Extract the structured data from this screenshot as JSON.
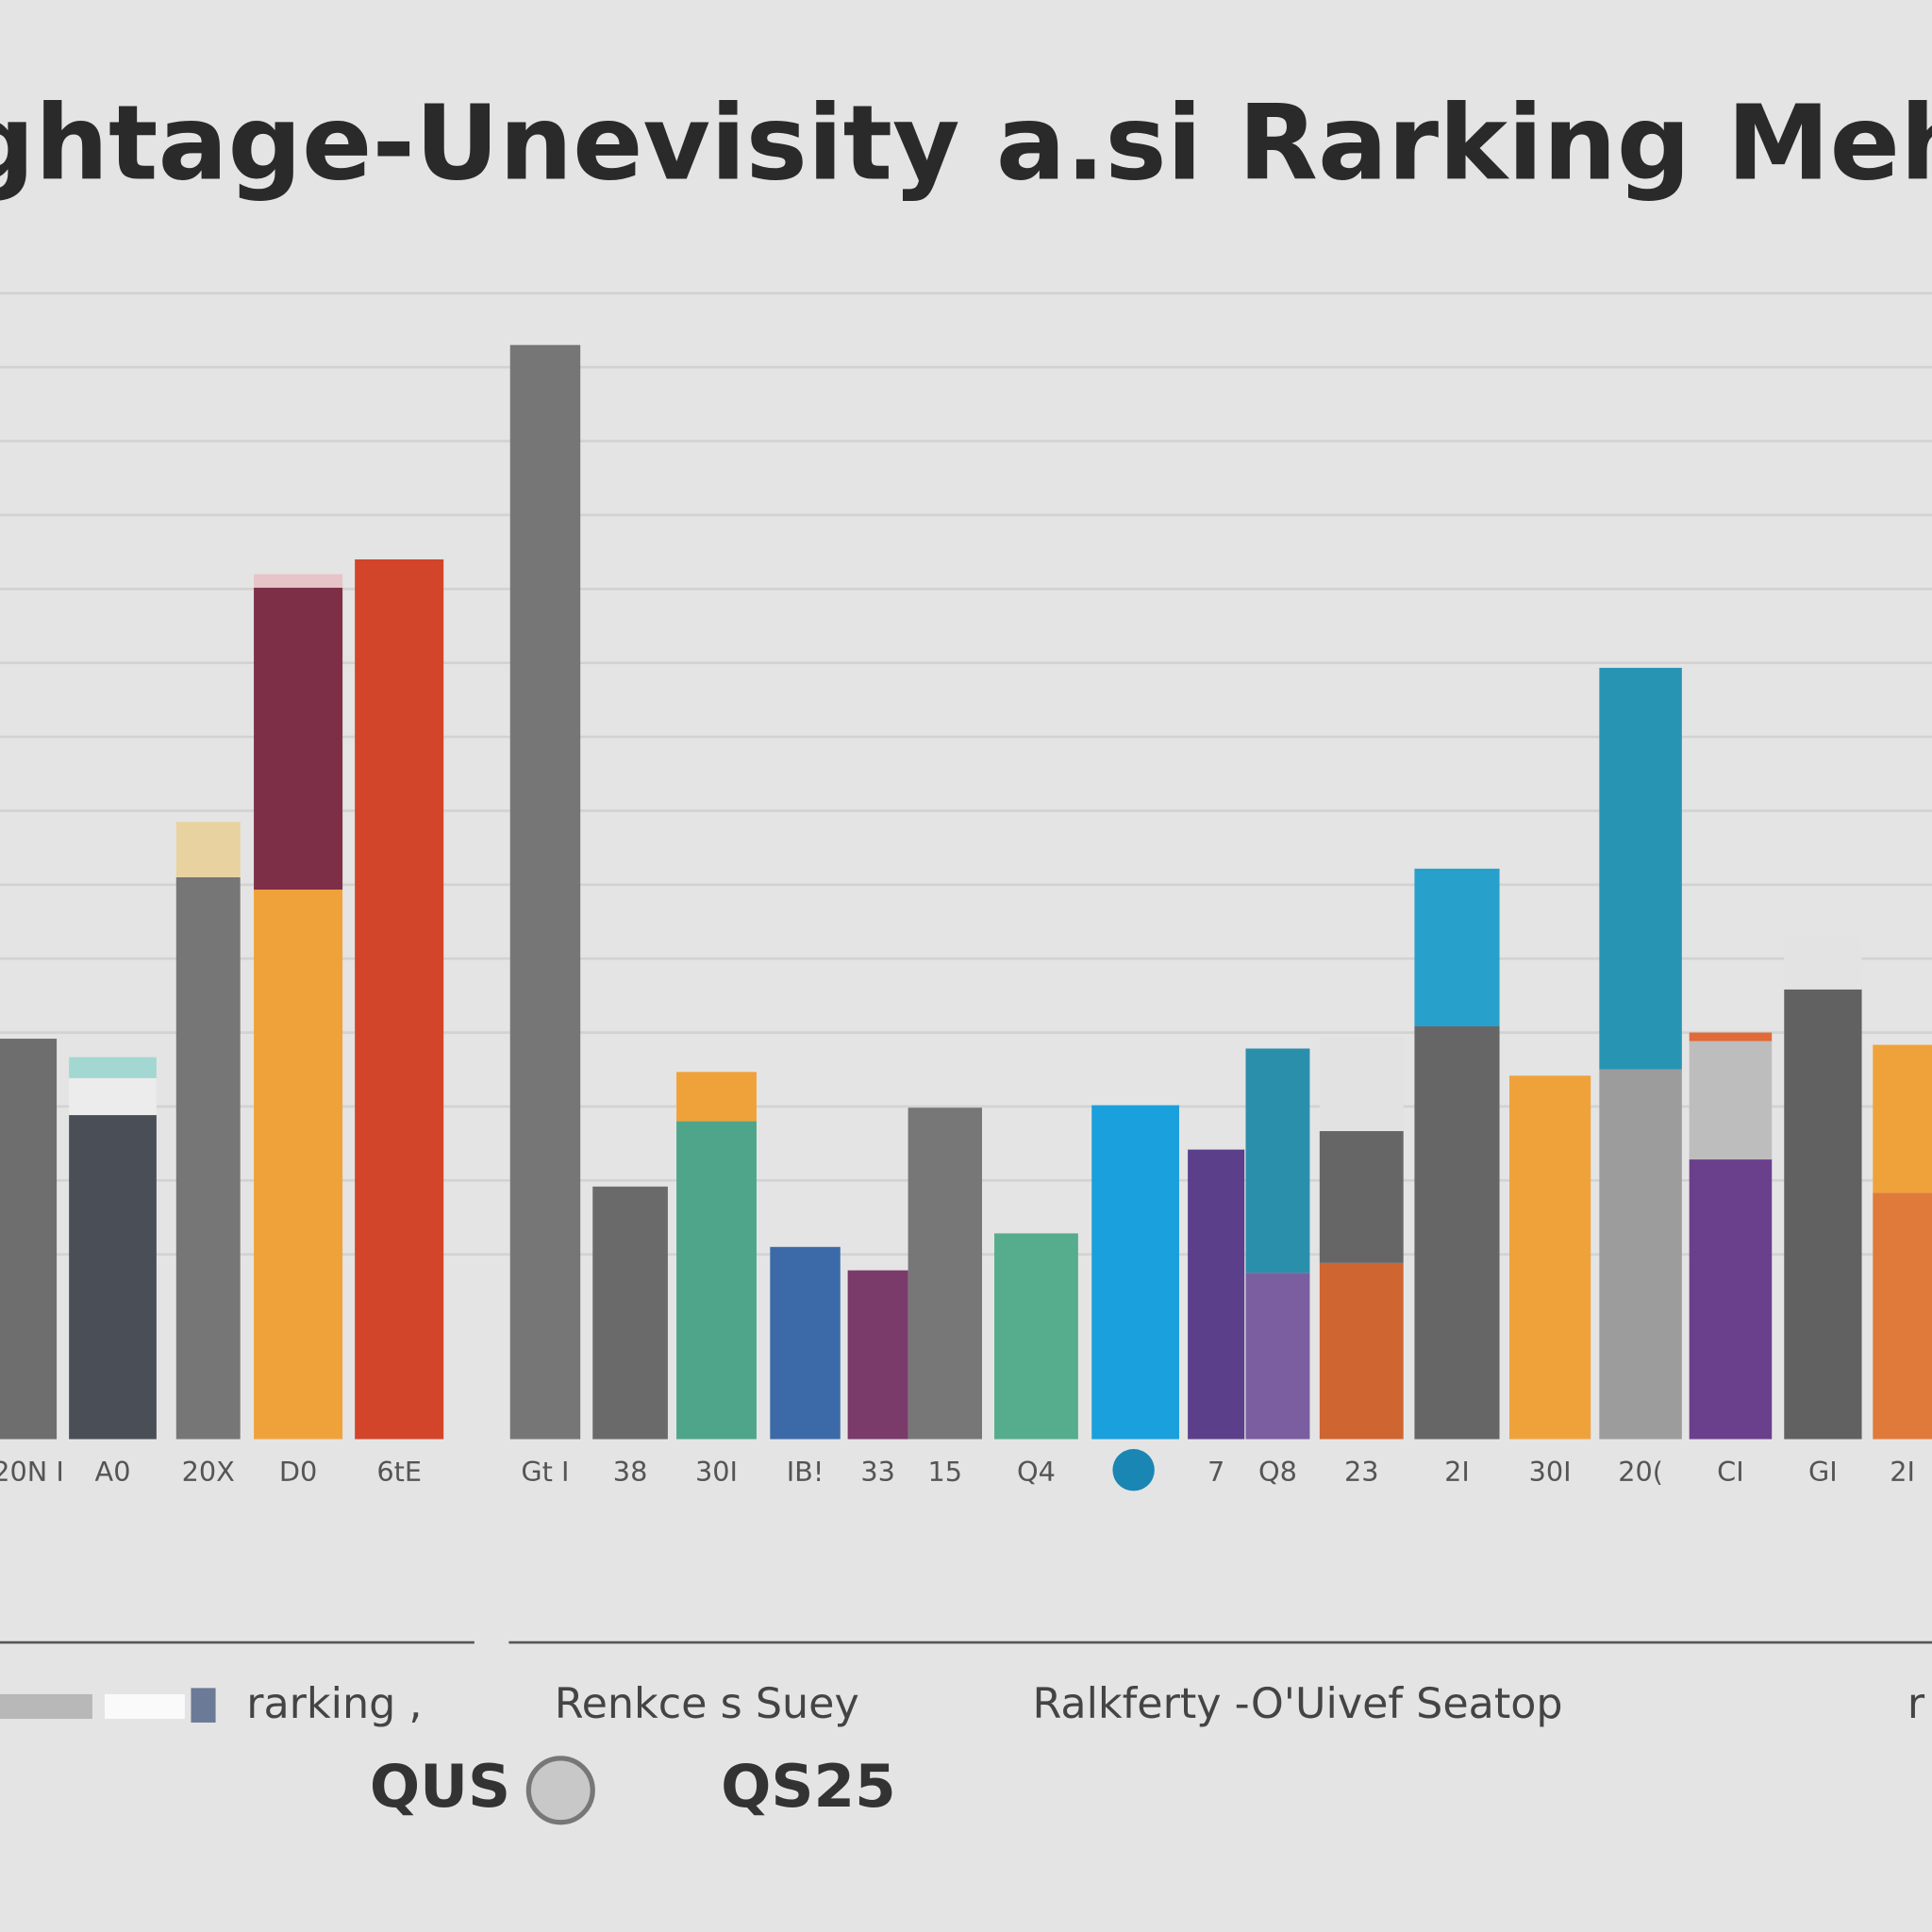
{
  "chart_data": {
    "type": "stacked_bar",
    "title": "Veghtage-Unevisity a.si Rarking Mehoo",
    "ylim": [
      0,
      100
    ],
    "yticks": [
      15,
      21,
      27,
      33,
      39,
      45,
      51,
      57,
      63,
      69,
      75,
      81,
      87,
      93
    ],
    "grid": true,
    "categories": [
      "20N I",
      "A0",
      "20X",
      "D0",
      "6tE",
      "Gt I",
      "38",
      "30I",
      "IB!",
      "33",
      "15",
      "Q4",
      null,
      "7",
      "Q8",
      "23",
      "2I",
      "30I",
      "20(",
      "CI",
      "GI",
      "2I"
    ],
    "bars": [
      {
        "segments": [
          {
            "value": 32.5,
            "color": "#6e6e6e"
          }
        ]
      },
      {
        "segments": [
          {
            "value": 26.3,
            "color": "#4a4f57"
          },
          {
            "value": 3.0,
            "color": "#ececec"
          },
          {
            "value": 1.7,
            "color": "#a3d8d2"
          }
        ]
      },
      {
        "segments": [
          {
            "value": 45.6,
            "color": "#767676"
          },
          {
            "value": 4.5,
            "color": "#e8d3a0"
          }
        ]
      },
      {
        "segments": [
          {
            "value": 44.6,
            "color": "#f0a23a"
          },
          {
            "value": 24.5,
            "color": "#7e2f48"
          },
          {
            "value": 1.1,
            "color": "#e6c4c8"
          }
        ]
      },
      {
        "segments": [
          {
            "value": 71.4,
            "color": "#d2452a"
          }
        ]
      },
      {
        "segments": [
          {
            "value": 88.8,
            "color": "#767676"
          }
        ]
      },
      {
        "segments": [
          {
            "value": 20.5,
            "color": "#6a6a6a"
          }
        ]
      },
      {
        "segments": [
          {
            "value": 25.8,
            "color": "#4fa58a"
          },
          {
            "value": 4.0,
            "color": "#f0a23a"
          }
        ]
      },
      {
        "segments": [
          {
            "value": 15.6,
            "color": "#3c6aa8"
          }
        ]
      },
      {
        "segments": [
          {
            "value": 13.7,
            "color": "#7a3a6a"
          }
        ]
      },
      {
        "segments": [
          {
            "value": 26.9,
            "color": "#777777"
          }
        ]
      },
      {
        "segments": [
          {
            "value": 16.7,
            "color": "#55ad8d"
          }
        ]
      },
      {
        "segments": [
          {
            "value": 27.1,
            "color": "#1aa0dc"
          }
        ]
      },
      {
        "segments": [
          {
            "value": 23.5,
            "color": "#5b3f8a"
          }
        ]
      },
      {
        "segments": [
          {
            "value": 13.5,
            "color": "#7a5ea0"
          },
          {
            "value": 18.2,
            "color": "#2a8fab"
          }
        ]
      },
      {
        "segments": [
          {
            "value": 14.3,
            "color": "#cf6530"
          },
          {
            "value": 10.7,
            "color": "#666666"
          },
          {
            "value": 7.6,
            "color": "#e2e2e2"
          }
        ]
      },
      {
        "segments": [
          {
            "value": 33.5,
            "color": "#666666"
          },
          {
            "value": 12.8,
            "color": "#27a0cc"
          }
        ]
      },
      {
        "segments": [
          {
            "value": 29.5,
            "color": "#f0a23a"
          }
        ]
      },
      {
        "segments": [
          {
            "value": 30.0,
            "color": "#9c9c9c"
          },
          {
            "value": 32.6,
            "color": "#2894b4"
          }
        ]
      },
      {
        "segments": [
          {
            "value": 22.7,
            "color": "#6a3f8c"
          },
          {
            "value": 9.6,
            "color": "#bdbdbd"
          },
          {
            "value": 0.7,
            "color": "#e06a3a"
          }
        ]
      },
      {
        "segments": [
          {
            "value": 36.5,
            "color": "#616161"
          },
          {
            "value": 4.3,
            "color": "#e3e3e3"
          }
        ]
      },
      {
        "segments": [
          {
            "value": 20.0,
            "color": "#e07a3a"
          },
          {
            "value": 12.0,
            "color": "#f0a23a"
          }
        ]
      }
    ],
    "legend": [
      "rarking ,",
      "Renkce s Suey",
      "Ralkferty -O'Uivef Seatop",
      "r"
    ],
    "brands": [
      "QUS",
      "QS25"
    ]
  }
}
